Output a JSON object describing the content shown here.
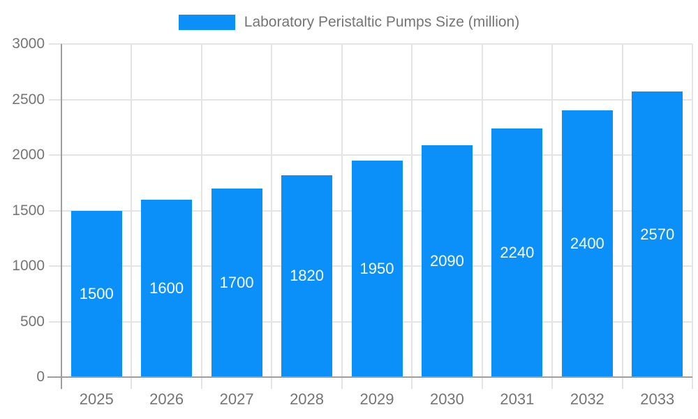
{
  "legend": {
    "label": "Laboratory Peristaltic Pumps Size (million)"
  },
  "chart_data": {
    "type": "bar",
    "title": "Laboratory Peristaltic Pumps Size (million)",
    "categories": [
      "2025",
      "2026",
      "2027",
      "2028",
      "2029",
      "2030",
      "2031",
      "2032",
      "2033"
    ],
    "values": [
      1500,
      1600,
      1700,
      1820,
      1950,
      2090,
      2240,
      2400,
      2570
    ],
    "xlabel": "",
    "ylabel": "",
    "ylim": [
      0,
      3000
    ],
    "ytick_step": 500,
    "grid": true,
    "legend_position": "top",
    "colors": {
      "bar": "#0a90f8",
      "bar_value_text": "#ffffff",
      "axis_text": "#757575",
      "gridline": "#e4e4e4",
      "axis_line": "#9e9e9e",
      "background": "#ffffff"
    }
  }
}
